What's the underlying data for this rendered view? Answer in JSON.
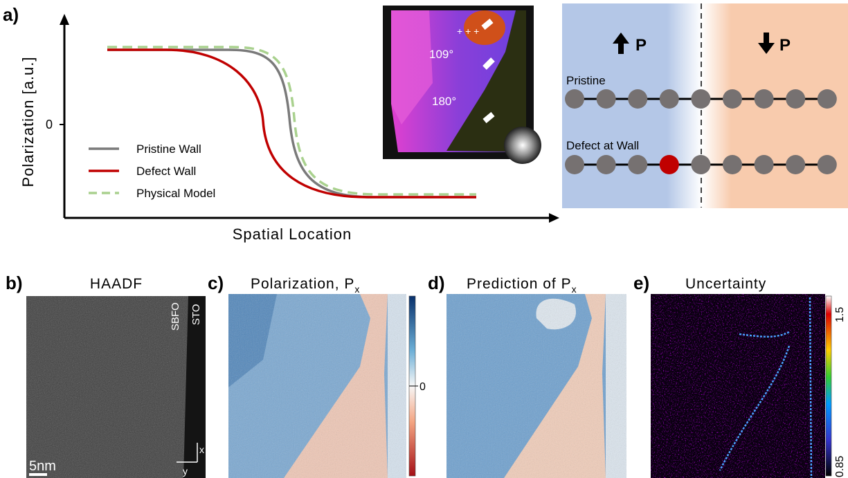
{
  "panel_a": {
    "label": "a)",
    "y_label": "Polarization [a.u.]",
    "y_tick": "0",
    "x_label": "Spatial Location",
    "legend": [
      {
        "name": "Pristine Wall",
        "color": "#7a7a7a"
      },
      {
        "name": "Defect Wall",
        "color": "#c00000"
      },
      {
        "name": "Physical Model",
        "color": "#a9d18e"
      }
    ],
    "inset": {
      "angles": [
        "109°",
        "180°"
      ]
    },
    "schematic": {
      "left_p": "P",
      "right_p": "P",
      "rows": [
        "Pristine",
        "Defect at Wall"
      ]
    }
  },
  "panel_b": {
    "label": "b)",
    "title": "HAADF",
    "layers": [
      "SBFO",
      "STO"
    ],
    "scale": "5nm",
    "axes": [
      "x",
      "y"
    ]
  },
  "panel_c": {
    "label": "c)",
    "title": "Polarization, P",
    "subscript": "x",
    "colorbar_tick": "0"
  },
  "panel_d": {
    "label": "d)",
    "title": "Prediction of P",
    "subscript": "x"
  },
  "panel_e": {
    "label": "e)",
    "title": "Uncertainty",
    "colorbar_max": "1.5",
    "colorbar_min": "0.85"
  }
}
